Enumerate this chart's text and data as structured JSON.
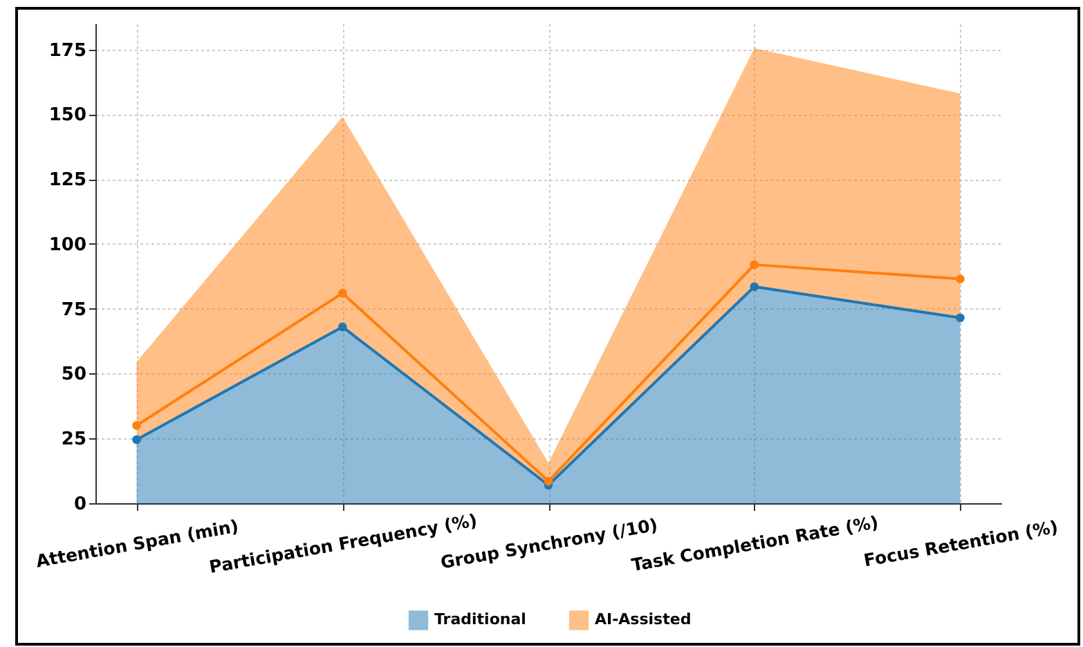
{
  "chart_data": {
    "type": "area",
    "categories": [
      "Attention Span (min)",
      "Participation Frequency (%)",
      "Group Synchrony (/10)",
      "Task Completion Rate (%)",
      "Focus Retention (%)"
    ],
    "stacked": true,
    "series": [
      {
        "name": "Traditional",
        "color": "#1f77b4",
        "marker": "circle",
        "values": [
          24.5,
          68,
          7,
          83.5,
          71.5
        ]
      },
      {
        "name": "AI-Assisted",
        "color": "#ff7f0e",
        "values": [
          30,
          81,
          8.5,
          92,
          86.5
        ]
      },
      {
        "type": "line",
        "color": "#ff7f0e",
        "marker": "circle",
        "values": [
          30,
          81,
          8.5,
          92,
          86.5
        ]
      }
    ],
    "ylim": [
      0,
      185
    ],
    "yticks": [
      0,
      25,
      50,
      75,
      100,
      125,
      150,
      175
    ],
    "grid": true,
    "legend": "bottom"
  }
}
